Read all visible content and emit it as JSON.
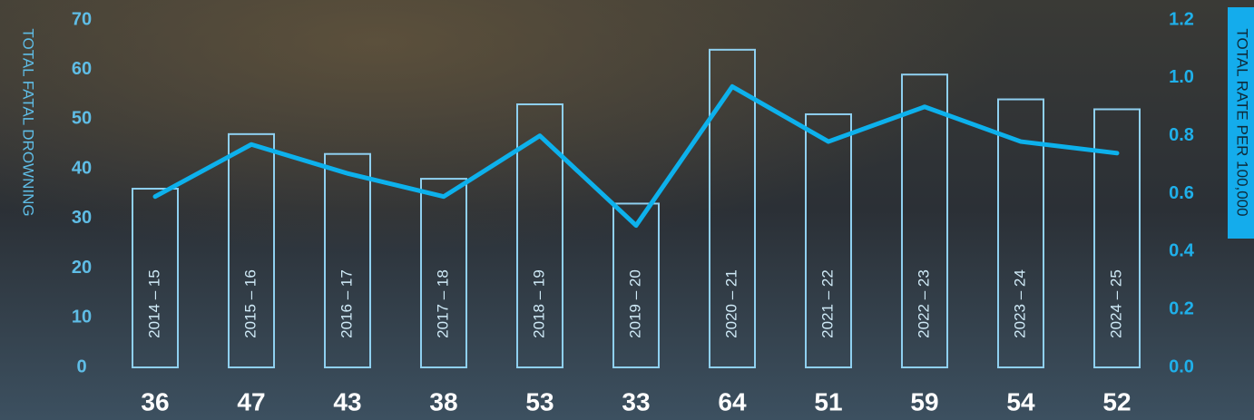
{
  "chart_data": {
    "type": "bar",
    "categories": [
      "2014 – 15",
      "2015 – 16",
      "2016 – 17",
      "2017 – 18",
      "2018 – 19",
      "2019 – 20",
      "2020 – 21",
      "2021 – 22",
      "2022 – 23",
      "2023 – 24",
      "2024 – 25"
    ],
    "series": [
      {
        "type": "bar",
        "color": "#8fd0f0",
        "values": [
          36,
          47,
          43,
          38,
          53,
          33,
          64,
          51,
          59,
          54,
          52
        ]
      },
      {
        "type": "line",
        "axis": "y2",
        "color": "#0db1ec",
        "values": [
          0.59,
          0.77,
          0.67,
          0.59,
          0.8,
          0.49,
          0.97,
          0.78,
          0.9,
          0.78,
          0.74
        ]
      }
    ],
    "y_label": "TOTAL FATAL DROWNING",
    "y2_label": "TOTAL RATE PER 100,000",
    "ylim": [
      0,
      70
    ],
    "yticks": [
      0,
      10,
      20,
      30,
      40,
      50,
      60,
      70
    ],
    "y2lim": [
      0,
      1.2
    ],
    "y2ticks": [
      {
        "value": 0,
        "label": "0.0"
      },
      0.2,
      0.4,
      0.6,
      0.8,
      {
        "value": 1,
        "label": "1.0"
      },
      1.2
    ]
  }
}
